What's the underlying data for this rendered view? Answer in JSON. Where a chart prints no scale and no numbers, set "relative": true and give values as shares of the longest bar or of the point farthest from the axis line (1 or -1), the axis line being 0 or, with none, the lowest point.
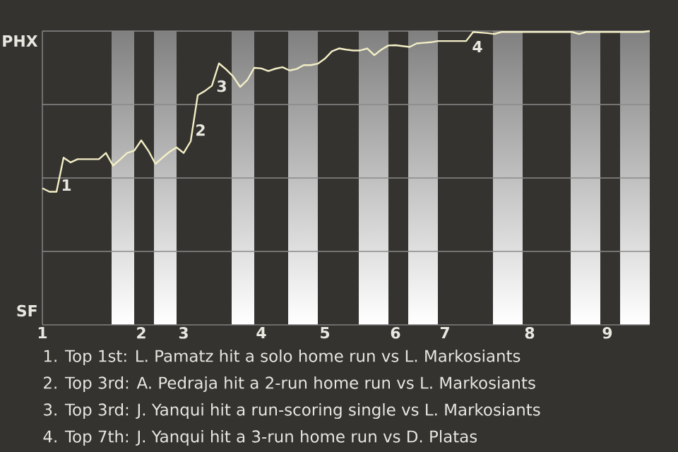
{
  "chart_data": {
    "type": "line",
    "relative": true,
    "marker": "none",
    "line_style": "solid",
    "categories": [
      "1",
      null,
      null,
      null,
      null,
      null,
      null,
      null,
      null,
      null,
      null,
      null,
      null,
      null,
      "2",
      null,
      null,
      null,
      null,
      null,
      "3",
      null,
      null,
      null,
      null,
      null,
      null,
      null,
      null,
      null,
      null,
      "4",
      null,
      null,
      null,
      null,
      null,
      null,
      null,
      null,
      "5",
      null,
      null,
      null,
      null,
      null,
      null,
      null,
      null,
      null,
      "6",
      null,
      null,
      null,
      null,
      null,
      null,
      "7",
      null,
      null,
      null,
      null,
      null,
      null,
      null,
      null,
      null,
      null,
      null,
      "8",
      null,
      null,
      null,
      null,
      null,
      null,
      null,
      null,
      null,
      null,
      "9",
      null,
      null,
      null,
      null,
      null,
      null
    ],
    "series": [
      {
        "color": "#f3efc6",
        "values": [
          0.465,
          0.453,
          0.453,
          0.569,
          0.553,
          0.564,
          0.564,
          0.564,
          0.564,
          0.585,
          0.542,
          0.563,
          0.585,
          0.593,
          0.628,
          0.593,
          0.548,
          0.569,
          0.589,
          0.604,
          0.585,
          0.625,
          0.782,
          0.796,
          0.814,
          0.89,
          0.87,
          0.846,
          0.81,
          0.833,
          0.875,
          0.873,
          0.864,
          0.872,
          0.877,
          0.866,
          0.871,
          0.884,
          0.884,
          0.889,
          0.906,
          0.931,
          0.941,
          0.937,
          0.934,
          0.934,
          0.941,
          0.918,
          0.937,
          0.951,
          0.952,
          0.949,
          0.946,
          0.958,
          0.96,
          0.962,
          0.966,
          0.966,
          0.966,
          0.966,
          0.966,
          0.997,
          0.995,
          0.993,
          0.99,
          0.997,
          0.997,
          0.997,
          0.997,
          0.997,
          0.997,
          0.997,
          0.997,
          0.997,
          0.997,
          0.997,
          0.99,
          0.997,
          0.997,
          0.997,
          0.997,
          0.997,
          0.997,
          0.997,
          0.997,
          0.997,
          1
        ]
      }
    ],
    "ref_lines": [
      {
        "axis": "y",
        "value": 0.25,
        "color": "#8a8a88"
      },
      {
        "axis": "y",
        "value": 0.5,
        "color": "#8a8a88"
      },
      {
        "axis": "y",
        "value": 0.75,
        "color": "#8a8a88"
      },
      {
        "axis": "y",
        "value": 1,
        "color": "#8a8a88"
      }
    ],
    "annotations": [
      "1",
      "2",
      "3",
      "4",
      "PHX",
      "SF",
      "1. Top 1st: L. Pamatz hit a solo home run vs L. Markosiants",
      "2. Top 3rd: A. Pedraja hit a 2-run home run vs L. Markosiants",
      "3. Top 3rd: J. Yanqui hit a run-scoring single vs L. Markosiants",
      "4. Top 7th: J. Yanqui hit a 3-run home run vs D. Platas"
    ]
  }
}
